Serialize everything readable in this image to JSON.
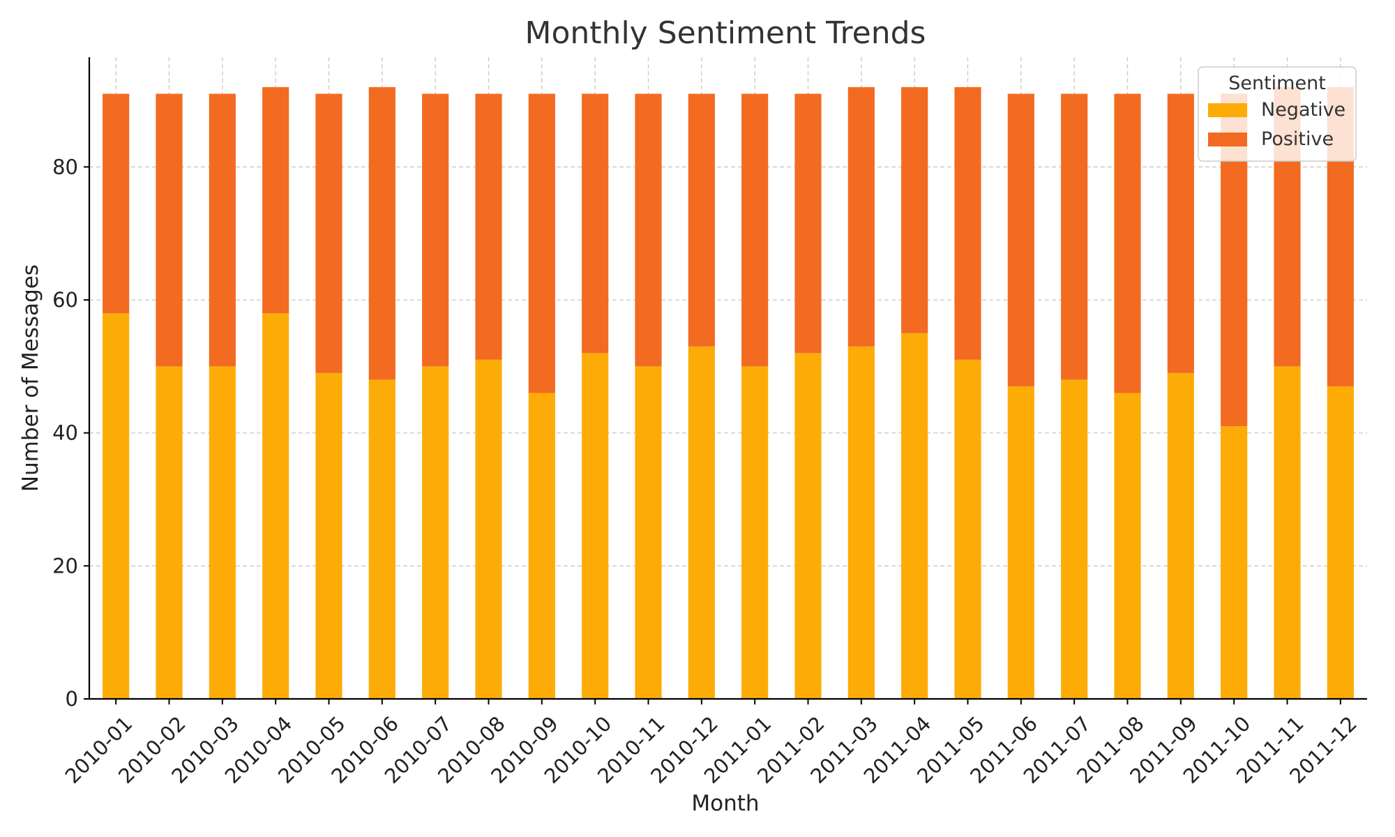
{
  "chart_data": {
    "type": "bar",
    "stacked": true,
    "title": "Monthly Sentiment Trends",
    "xlabel": "Month",
    "ylabel": "Number of Messages",
    "ylim": [
      0,
      96.5
    ],
    "yticks": [
      0,
      20,
      40,
      60,
      80
    ],
    "grid": true,
    "legend": {
      "title": "Sentiment",
      "position": "top-right"
    },
    "categories": [
      "2010-01",
      "2010-02",
      "2010-03",
      "2010-04",
      "2010-05",
      "2010-06",
      "2010-07",
      "2010-08",
      "2010-09",
      "2010-10",
      "2010-11",
      "2010-12",
      "2011-01",
      "2011-02",
      "2011-03",
      "2011-04",
      "2011-05",
      "2011-06",
      "2011-07",
      "2011-08",
      "2011-09",
      "2011-10",
      "2011-11",
      "2011-12"
    ],
    "series": [
      {
        "name": "Negative",
        "color": "#FDAC07",
        "values": [
          58,
          50,
          50,
          58,
          49,
          48,
          50,
          51,
          46,
          52,
          50,
          53,
          50,
          52,
          53,
          55,
          51,
          47,
          48,
          46,
          49,
          41,
          50,
          47
        ]
      },
      {
        "name": "Positive",
        "color": "#F26B21",
        "values": [
          33,
          41,
          41,
          34,
          42,
          44,
          41,
          40,
          45,
          39,
          41,
          38,
          41,
          39,
          39,
          37,
          41,
          44,
          43,
          45,
          42,
          50,
          42,
          45
        ]
      }
    ]
  }
}
